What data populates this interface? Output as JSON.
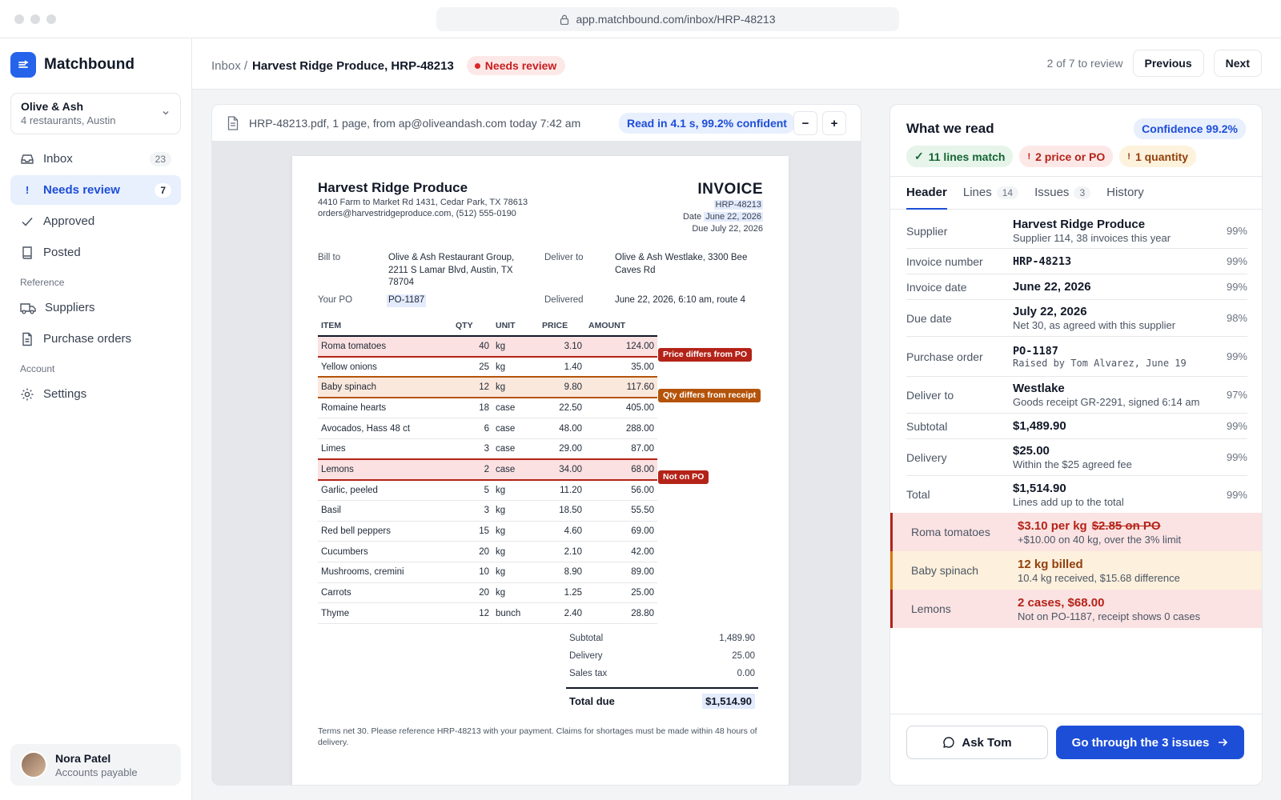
{
  "url": "app.matchbound.com/inbox/HRP-48213",
  "brand": {
    "name": "Matchbound"
  },
  "org": {
    "name": "Olive & Ash",
    "sub": "4 restaurants, Austin"
  },
  "nav": {
    "inbox": {
      "label": "Inbox",
      "count": "23"
    },
    "needs_review": {
      "label": "Needs review",
      "count": "7"
    },
    "approved": {
      "label": "Approved"
    },
    "posted": {
      "label": "Posted"
    },
    "reference_heading": "Reference",
    "suppliers": {
      "label": "Suppliers"
    },
    "purchase_orders": {
      "label": "Purchase orders"
    },
    "account_heading": "Account",
    "settings": {
      "label": "Settings"
    }
  },
  "user": {
    "name": "Nora Patel",
    "role": "Accounts payable"
  },
  "topbar": {
    "crumb_root": "Inbox /",
    "crumb_current": "Harvest Ridge Produce, HRP-48213",
    "status": "Needs review",
    "pager_text": "2 of 7 to review",
    "previous": "Previous",
    "next": "Next"
  },
  "viewer": {
    "file_info": "HRP-48213.pdf, 1 page, from ap@oliveandash.com today 7:42 am",
    "read_badge": "Read in 4.1 s, 99.2% confident",
    "zoom_out": "−",
    "zoom_in": "+"
  },
  "invoice": {
    "supplier": "Harvest Ridge Produce",
    "address": "4410 Farm to Market Rd 1431, Cedar Park, TX 78613",
    "contact": "orders@harvestridgeproduce.com, (512) 555-0190",
    "title": "INVOICE",
    "number": "HRP-48213",
    "date_label": "Date",
    "date": "June 22, 2026",
    "due": "Due July 22, 2026",
    "bill_to_label": "Bill to",
    "bill_to": "Olive & Ash Restaurant Group, 2211 S Lamar Blvd, Austin, TX 78704",
    "deliver_to_label": "Deliver to",
    "deliver_to": "Olive & Ash Westlake, 3300 Bee Caves Rd",
    "po_label": "Your PO",
    "po": "PO-1187",
    "delivered_label": "Delivered",
    "delivered": "June 22, 2026, 6:10 am, route 4",
    "headers": {
      "item": "ITEM",
      "qty": "QTY",
      "unit": "UNIT",
      "price": "PRICE",
      "amount": "AMOUNT"
    },
    "lines": [
      {
        "item": "Roma tomatoes",
        "qty": "40",
        "unit": "kg",
        "price": "3.10",
        "amount": "124.00"
      },
      {
        "item": "Yellow onions",
        "qty": "25",
        "unit": "kg",
        "price": "1.40",
        "amount": "35.00"
      },
      {
        "item": "Baby spinach",
        "qty": "12",
        "unit": "kg",
        "price": "9.80",
        "amount": "117.60"
      },
      {
        "item": "Romaine hearts",
        "qty": "18",
        "unit": "case",
        "price": "22.50",
        "amount": "405.00"
      },
      {
        "item": "Avocados, Hass 48 ct",
        "qty": "6",
        "unit": "case",
        "price": "48.00",
        "amount": "288.00"
      },
      {
        "item": "Limes",
        "qty": "3",
        "unit": "case",
        "price": "29.00",
        "amount": "87.00"
      },
      {
        "item": "Lemons",
        "qty": "2",
        "unit": "case",
        "price": "34.00",
        "amount": "68.00"
      },
      {
        "item": "Garlic, peeled",
        "qty": "5",
        "unit": "kg",
        "price": "11.20",
        "amount": "56.00"
      },
      {
        "item": "Basil",
        "qty": "3",
        "unit": "kg",
        "price": "18.50",
        "amount": "55.50"
      },
      {
        "item": "Red bell peppers",
        "qty": "15",
        "unit": "kg",
        "price": "4.60",
        "amount": "69.00"
      },
      {
        "item": "Cucumbers",
        "qty": "20",
        "unit": "kg",
        "price": "2.10",
        "amount": "42.00"
      },
      {
        "item": "Mushrooms, cremini",
        "qty": "10",
        "unit": "kg",
        "price": "8.90",
        "amount": "89.00"
      },
      {
        "item": "Carrots",
        "qty": "20",
        "unit": "kg",
        "price": "1.25",
        "amount": "25.00"
      },
      {
        "item": "Thyme",
        "qty": "12",
        "unit": "bunch",
        "price": "2.40",
        "amount": "28.80"
      }
    ],
    "tags": {
      "roma": "Price differs from PO",
      "spinach": "Qty differs from receipt",
      "lemons": "Not on PO"
    },
    "subtotal_label": "Subtotal",
    "subtotal": "1,489.90",
    "delivery_label": "Delivery",
    "delivery": "25.00",
    "tax_label": "Sales tax",
    "tax": "0.00",
    "total_label": "Total due",
    "total": "$1,514.90",
    "terms": "Terms net 30. Please reference HRP-48213 with your payment. Claims for shortages must be made within 48 hours of delivery."
  },
  "panel": {
    "title": "What we read",
    "confidence": "Confidence 99.2%",
    "chips": {
      "match": "11 lines match",
      "price": "2 price or PO",
      "qty": "1 quantity"
    },
    "tabs": {
      "header": "Header",
      "lines": "Lines",
      "lines_count": "14",
      "issues": "Issues",
      "issues_count": "3",
      "history": "History"
    },
    "fields": {
      "supplier": {
        "label": "Supplier",
        "value": "Harvest Ridge Produce",
        "sub": "Supplier 114, 38 invoices this year",
        "conf": "99%"
      },
      "invoice_number": {
        "label": "Invoice number",
        "value": "HRP-48213",
        "conf": "99%"
      },
      "invoice_date": {
        "label": "Invoice date",
        "value": "June 22, 2026",
        "conf": "99%"
      },
      "due_date": {
        "label": "Due date",
        "value": "July 22, 2026",
        "sub": "Net 30, as agreed with this supplier",
        "conf": "98%"
      },
      "purchase_order": {
        "label": "Purchase order",
        "value": "PO-1187",
        "sub": "Raised by Tom Alvarez, June 19",
        "conf": "99%"
      },
      "deliver_to": {
        "label": "Deliver to",
        "value": "Westlake",
        "sub": "Goods receipt GR-2291, signed 6:14 am",
        "conf": "97%"
      },
      "subtotal": {
        "label": "Subtotal",
        "value": "$1,489.90",
        "conf": "99%"
      },
      "delivery": {
        "label": "Delivery",
        "value": "$25.00",
        "sub": "Within the $25 agreed fee",
        "conf": "99%"
      },
      "total": {
        "label": "Total",
        "value": "$1,514.90",
        "sub": "Lines add up to the total",
        "conf": "99%"
      }
    },
    "issues": {
      "roma": {
        "label": "Roma tomatoes",
        "value": "$3.10 per kg",
        "struck": "$2.85 on PO",
        "sub": "+$10.00 on 40 kg, over the 3% limit"
      },
      "spinach": {
        "label": "Baby spinach",
        "value": "12 kg billed",
        "sub": "10.4 kg received, $15.68 difference"
      },
      "lemons": {
        "label": "Lemons",
        "value": "2 cases, $68.00",
        "sub": "Not on PO-1187, receipt shows 0 cases"
      }
    },
    "ask": "Ask Tom",
    "go": "Go through the 3 issues"
  }
}
